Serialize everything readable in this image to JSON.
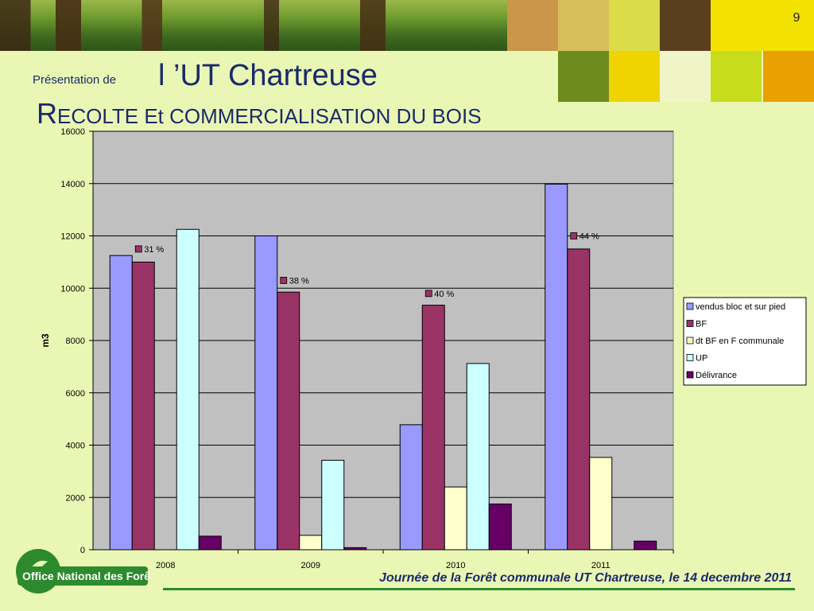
{
  "slide": {
    "number": "9",
    "title_prefix": "Présentation de",
    "title_main": "l ’UT Chartreuse",
    "subtitle_cap": "R",
    "subtitle_rest": "ECOLTE Et COMMERCIALISATION DU BOIS",
    "footer": "Journée de la Forêt communale UT Chartreuse, le 14 decembre 2011",
    "logo_text": "Office National des Forêts"
  },
  "colors": {
    "header_tiles": [
      "#C9964A",
      "#D7BE5C",
      "#DCDC4A",
      "#5A3F1E",
      "#F3E200",
      "#6E8B1E",
      "#F0D400",
      "#F0F5C8",
      "#C8DC1E",
      "#E9A000"
    ],
    "plot_bg": "#C0C0C0",
    "page_bg": "#EAF7B4",
    "title": "#1a2a6b"
  },
  "chart_data": {
    "type": "bar",
    "ylabel": "m3",
    "ylim": [
      0,
      16000
    ],
    "yticks": [
      0,
      2000,
      4000,
      6000,
      8000,
      10000,
      12000,
      14000,
      16000
    ],
    "categories": [
      "2008",
      "2009",
      "2010",
      "2011"
    ],
    "grid": true,
    "legend_position": "right",
    "series": [
      {
        "name": "vendus bloc et sur pied",
        "color": "#9999FF",
        "values": [
          11250,
          12000,
          4780,
          13980
        ]
      },
      {
        "name": "BF",
        "color": "#993366",
        "values": [
          11000,
          9850,
          9350,
          11500
        ]
      },
      {
        "name": "dt BF en F communale",
        "color": "#FFFFCC",
        "values": [
          0,
          550,
          2400,
          3530
        ]
      },
      {
        "name": "UP",
        "color": "#CCFFFF",
        "values": [
          12250,
          3420,
          7120,
          0
        ]
      },
      {
        "name": "Délivrance",
        "color": "#660066",
        "values": [
          520,
          80,
          1750,
          330
        ]
      }
    ],
    "annotations": [
      {
        "category": "2008",
        "text": "31 %",
        "y": 11500
      },
      {
        "category": "2009",
        "text": "38 %",
        "y": 10300
      },
      {
        "category": "2010",
        "text": "40 %",
        "y": 9800
      },
      {
        "category": "2011",
        "text": "44 %",
        "y": 12000
      }
    ]
  }
}
